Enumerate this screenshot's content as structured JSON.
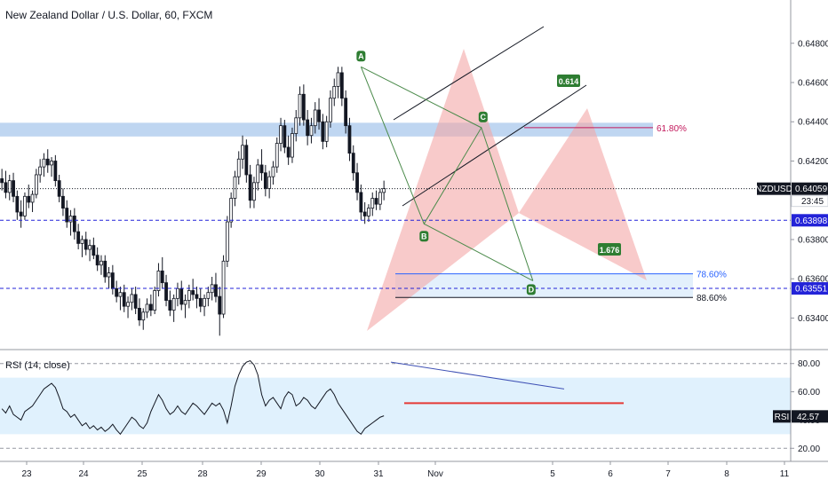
{
  "chart_data": {
    "type": "candlestick",
    "title": "New Zealand Dollar / U.S. Dollar, 60, FXCM",
    "symbol": "NZDUSD",
    "last_price": "0.64059",
    "countdown": "23:45",
    "price_axis": {
      "ticks": [
        "0.64800",
        "0.64600",
        "0.64400",
        "0.64200",
        "0.64000",
        "0.63800",
        "0.63600",
        "0.63400"
      ],
      "ylim": [
        0.6328,
        0.6493
      ]
    },
    "time_axis": {
      "labels": [
        "23",
        "24",
        "25",
        "28",
        "29",
        "30",
        "31",
        "Nov",
        "5",
        "6",
        "7",
        "8",
        "11"
      ]
    },
    "price_tags": [
      {
        "label": "NZDUSD",
        "value": "0.64059",
        "price": 0.64059,
        "color": "#131722"
      },
      {
        "label": "",
        "value": "0.63898",
        "price": 0.63898,
        "color": "#2323d8"
      },
      {
        "label": "",
        "value": "0.63551",
        "price": 0.63551,
        "color": "#2323d8"
      }
    ],
    "resistance_zone": [
      0.64325,
      0.64395
    ],
    "horizontal_lines": [
      {
        "price": 0.64059,
        "style": "dotted",
        "color": "#131722"
      },
      {
        "price": 0.63898,
        "style": "dashed",
        "color": "#2323d8"
      },
      {
        "price": 0.63551,
        "style": "dashed",
        "color": "#2323d8"
      }
    ],
    "harmonic_points": [
      {
        "label": "A",
        "price": 0.6468,
        "t": 94.0
      },
      {
        "label": "B",
        "price": 0.6388,
        "t": 110.5
      },
      {
        "label": "C",
        "price": 0.6437,
        "t": 125.5
      },
      {
        "label": "D",
        "price": 0.6359,
        "t": 139.0
      }
    ],
    "ratios": [
      {
        "label": "0.614"
      },
      {
        "label": "1.676"
      }
    ],
    "fib_levels": [
      {
        "label": "61.80%",
        "price": 0.6437,
        "color": "#c2185b"
      },
      {
        "label": "78.60%",
        "price": 0.63625,
        "color": "#2962ff"
      },
      {
        "label": "88.60%",
        "price": 0.63505,
        "color": "#131722"
      }
    ],
    "candles": [
      {
        "o": 0.6411,
        "h": 0.6416,
        "l": 0.6405,
        "c": 0.6409
      },
      {
        "o": 0.6409,
        "h": 0.6415,
        "l": 0.6401,
        "c": 0.6404
      },
      {
        "o": 0.6404,
        "h": 0.6413,
        "l": 0.64,
        "c": 0.641
      },
      {
        "o": 0.641,
        "h": 0.6414,
        "l": 0.6399,
        "c": 0.6402
      },
      {
        "o": 0.6402,
        "h": 0.6405,
        "l": 0.639,
        "c": 0.6394
      },
      {
        "o": 0.6394,
        "h": 0.64,
        "l": 0.6386,
        "c": 0.6392
      },
      {
        "o": 0.6392,
        "h": 0.6404,
        "l": 0.639,
        "c": 0.6402
      },
      {
        "o": 0.6402,
        "h": 0.6408,
        "l": 0.6396,
        "c": 0.6399
      },
      {
        "o": 0.6399,
        "h": 0.6405,
        "l": 0.6394,
        "c": 0.6403
      },
      {
        "o": 0.6403,
        "h": 0.6416,
        "l": 0.6401,
        "c": 0.6413
      },
      {
        "o": 0.6413,
        "h": 0.6421,
        "l": 0.6409,
        "c": 0.6417
      },
      {
        "o": 0.6417,
        "h": 0.6424,
        "l": 0.6412,
        "c": 0.6421
      },
      {
        "o": 0.6421,
        "h": 0.6426,
        "l": 0.6414,
        "c": 0.6418
      },
      {
        "o": 0.6418,
        "h": 0.6422,
        "l": 0.6412,
        "c": 0.642
      },
      {
        "o": 0.642,
        "h": 0.6423,
        "l": 0.6407,
        "c": 0.641
      },
      {
        "o": 0.641,
        "h": 0.6413,
        "l": 0.6399,
        "c": 0.6402
      },
      {
        "o": 0.6402,
        "h": 0.6406,
        "l": 0.6392,
        "c": 0.6396
      },
      {
        "o": 0.6396,
        "h": 0.64,
        "l": 0.6386,
        "c": 0.6389
      },
      {
        "o": 0.6389,
        "h": 0.6395,
        "l": 0.6382,
        "c": 0.6392
      },
      {
        "o": 0.6392,
        "h": 0.6396,
        "l": 0.638,
        "c": 0.6384
      },
      {
        "o": 0.6384,
        "h": 0.6388,
        "l": 0.6375,
        "c": 0.6378
      },
      {
        "o": 0.6378,
        "h": 0.6382,
        "l": 0.6371,
        "c": 0.638
      },
      {
        "o": 0.638,
        "h": 0.6384,
        "l": 0.6372,
        "c": 0.6375
      },
      {
        "o": 0.6375,
        "h": 0.638,
        "l": 0.6369,
        "c": 0.6377
      },
      {
        "o": 0.6377,
        "h": 0.6381,
        "l": 0.637,
        "c": 0.6372
      },
      {
        "o": 0.6372,
        "h": 0.6376,
        "l": 0.6364,
        "c": 0.6367
      },
      {
        "o": 0.6367,
        "h": 0.6372,
        "l": 0.6362,
        "c": 0.6369
      },
      {
        "o": 0.6369,
        "h": 0.6372,
        "l": 0.6358,
        "c": 0.6361
      },
      {
        "o": 0.6361,
        "h": 0.6366,
        "l": 0.6355,
        "c": 0.6363
      },
      {
        "o": 0.6363,
        "h": 0.6367,
        "l": 0.6352,
        "c": 0.6355
      },
      {
        "o": 0.6355,
        "h": 0.6359,
        "l": 0.6348,
        "c": 0.6351
      },
      {
        "o": 0.6351,
        "h": 0.6356,
        "l": 0.6344,
        "c": 0.6353
      },
      {
        "o": 0.6353,
        "h": 0.6357,
        "l": 0.6343,
        "c": 0.6346
      },
      {
        "o": 0.6346,
        "h": 0.6351,
        "l": 0.634,
        "c": 0.6348
      },
      {
        "o": 0.6348,
        "h": 0.6355,
        "l": 0.6344,
        "c": 0.6352
      },
      {
        "o": 0.6352,
        "h": 0.6356,
        "l": 0.6342,
        "c": 0.6345
      },
      {
        "o": 0.6345,
        "h": 0.635,
        "l": 0.6336,
        "c": 0.6339
      },
      {
        "o": 0.6339,
        "h": 0.6345,
        "l": 0.6334,
        "c": 0.6343
      },
      {
        "o": 0.6343,
        "h": 0.635,
        "l": 0.634,
        "c": 0.6347
      },
      {
        "o": 0.6347,
        "h": 0.6352,
        "l": 0.6341,
        "c": 0.6344
      },
      {
        "o": 0.6344,
        "h": 0.6356,
        "l": 0.6342,
        "c": 0.6354
      },
      {
        "o": 0.6354,
        "h": 0.6368,
        "l": 0.6351,
        "c": 0.6364
      },
      {
        "o": 0.6364,
        "h": 0.6371,
        "l": 0.6355,
        "c": 0.6358
      },
      {
        "o": 0.6358,
        "h": 0.6362,
        "l": 0.6346,
        "c": 0.6349
      },
      {
        "o": 0.6349,
        "h": 0.6354,
        "l": 0.6341,
        "c": 0.6344
      },
      {
        "o": 0.6344,
        "h": 0.6352,
        "l": 0.6338,
        "c": 0.635
      },
      {
        "o": 0.635,
        "h": 0.6358,
        "l": 0.6346,
        "c": 0.6355
      },
      {
        "o": 0.6355,
        "h": 0.6359,
        "l": 0.6344,
        "c": 0.6347
      },
      {
        "o": 0.6347,
        "h": 0.6352,
        "l": 0.634,
        "c": 0.6349
      },
      {
        "o": 0.6349,
        "h": 0.6357,
        "l": 0.6345,
        "c": 0.6354
      },
      {
        "o": 0.6354,
        "h": 0.636,
        "l": 0.6349,
        "c": 0.6352
      },
      {
        "o": 0.6352,
        "h": 0.6356,
        "l": 0.6345,
        "c": 0.635
      },
      {
        "o": 0.635,
        "h": 0.6355,
        "l": 0.6343,
        "c": 0.6346
      },
      {
        "o": 0.6346,
        "h": 0.6352,
        "l": 0.6341,
        "c": 0.635
      },
      {
        "o": 0.635,
        "h": 0.6356,
        "l": 0.6346,
        "c": 0.6353
      },
      {
        "o": 0.6353,
        "h": 0.6361,
        "l": 0.6349,
        "c": 0.6357
      },
      {
        "o": 0.6357,
        "h": 0.6363,
        "l": 0.6348,
        "c": 0.6351
      },
      {
        "o": 0.6351,
        "h": 0.6356,
        "l": 0.6331,
        "c": 0.6342
      },
      {
        "o": 0.6342,
        "h": 0.6372,
        "l": 0.634,
        "c": 0.6369
      },
      {
        "o": 0.6369,
        "h": 0.6392,
        "l": 0.6366,
        "c": 0.6389
      },
      {
        "o": 0.6389,
        "h": 0.6404,
        "l": 0.6386,
        "c": 0.6401
      },
      {
        "o": 0.6401,
        "h": 0.6415,
        "l": 0.6397,
        "c": 0.6412
      },
      {
        "o": 0.6412,
        "h": 0.6425,
        "l": 0.6408,
        "c": 0.6421
      },
      {
        "o": 0.6421,
        "h": 0.6433,
        "l": 0.6416,
        "c": 0.6428
      },
      {
        "o": 0.6428,
        "h": 0.6431,
        "l": 0.6409,
        "c": 0.6413
      },
      {
        "o": 0.6413,
        "h": 0.6418,
        "l": 0.6396,
        "c": 0.64
      },
      {
        "o": 0.64,
        "h": 0.6412,
        "l": 0.6396,
        "c": 0.6409
      },
      {
        "o": 0.6409,
        "h": 0.6421,
        "l": 0.6405,
        "c": 0.6418
      },
      {
        "o": 0.6418,
        "h": 0.6426,
        "l": 0.641,
        "c": 0.6414
      },
      {
        "o": 0.6414,
        "h": 0.6418,
        "l": 0.6402,
        "c": 0.6406
      },
      {
        "o": 0.6406,
        "h": 0.6415,
        "l": 0.6401,
        "c": 0.6412
      },
      {
        "o": 0.6412,
        "h": 0.642,
        "l": 0.6408,
        "c": 0.6417
      },
      {
        "o": 0.6417,
        "h": 0.6432,
        "l": 0.6414,
        "c": 0.6429
      },
      {
        "o": 0.6429,
        "h": 0.6442,
        "l": 0.6425,
        "c": 0.6438
      },
      {
        "o": 0.6438,
        "h": 0.6441,
        "l": 0.6424,
        "c": 0.6427
      },
      {
        "o": 0.6427,
        "h": 0.6433,
        "l": 0.6418,
        "c": 0.6422
      },
      {
        "o": 0.6422,
        "h": 0.6437,
        "l": 0.6419,
        "c": 0.6434
      },
      {
        "o": 0.6434,
        "h": 0.6446,
        "l": 0.643,
        "c": 0.6442
      },
      {
        "o": 0.6442,
        "h": 0.6458,
        "l": 0.6438,
        "c": 0.6454
      },
      {
        "o": 0.6454,
        "h": 0.6459,
        "l": 0.6438,
        "c": 0.6441
      },
      {
        "o": 0.6441,
        "h": 0.6446,
        "l": 0.6428,
        "c": 0.6433
      },
      {
        "o": 0.6433,
        "h": 0.6442,
        "l": 0.6429,
        "c": 0.6438
      },
      {
        "o": 0.6438,
        "h": 0.645,
        "l": 0.6434,
        "c": 0.6446
      },
      {
        "o": 0.6446,
        "h": 0.6452,
        "l": 0.6436,
        "c": 0.644
      },
      {
        "o": 0.644,
        "h": 0.6444,
        "l": 0.6426,
        "c": 0.643
      },
      {
        "o": 0.643,
        "h": 0.6443,
        "l": 0.6427,
        "c": 0.644
      },
      {
        "o": 0.644,
        "h": 0.6456,
        "l": 0.6437,
        "c": 0.6452
      },
      {
        "o": 0.6452,
        "h": 0.6462,
        "l": 0.6448,
        "c": 0.6458
      },
      {
        "o": 0.6458,
        "h": 0.6468,
        "l": 0.6452,
        "c": 0.6465
      },
      {
        "o": 0.6465,
        "h": 0.6468,
        "l": 0.6448,
        "c": 0.6452
      },
      {
        "o": 0.6452,
        "h": 0.6456,
        "l": 0.6434,
        "c": 0.6438
      },
      {
        "o": 0.6438,
        "h": 0.6442,
        "l": 0.642,
        "c": 0.6424
      },
      {
        "o": 0.6424,
        "h": 0.6428,
        "l": 0.641,
        "c": 0.6414
      },
      {
        "o": 0.6414,
        "h": 0.6419,
        "l": 0.64,
        "c": 0.6404
      },
      {
        "o": 0.6404,
        "h": 0.6408,
        "l": 0.639,
        "c": 0.6394
      },
      {
        "o": 0.6394,
        "h": 0.6399,
        "l": 0.6388,
        "c": 0.6392
      },
      {
        "o": 0.6392,
        "h": 0.6398,
        "l": 0.6389,
        "c": 0.6396
      },
      {
        "o": 0.6396,
        "h": 0.6404,
        "l": 0.6392,
        "c": 0.6401
      },
      {
        "o": 0.6401,
        "h": 0.6405,
        "l": 0.6395,
        "c": 0.6398
      },
      {
        "o": 0.6398,
        "h": 0.6406,
        "l": 0.6395,
        "c": 0.6404
      },
      {
        "o": 0.6404,
        "h": 0.641,
        "l": 0.64,
        "c": 0.6406
      }
    ],
    "rsi": {
      "label": "RSI (14, close)",
      "value": "42.57",
      "ticks": [
        "80.00",
        "60.00",
        "40.00",
        "20.00"
      ],
      "ylim": [
        12,
        88
      ],
      "bands": [
        30,
        70
      ],
      "values": [
        48,
        45,
        50,
        44,
        42,
        40,
        46,
        48,
        50,
        54,
        58,
        62,
        64,
        66,
        63,
        56,
        48,
        46,
        42,
        44,
        40,
        36,
        38,
        34,
        36,
        33,
        35,
        32,
        34,
        37,
        33,
        30,
        34,
        38,
        42,
        40,
        36,
        34,
        38,
        46,
        52,
        58,
        54,
        48,
        44,
        46,
        50,
        46,
        44,
        48,
        52,
        50,
        47,
        44,
        48,
        52,
        50,
        52,
        47,
        38,
        50,
        64,
        72,
        78,
        81,
        82,
        79,
        72,
        58,
        50,
        54,
        56,
        52,
        48,
        56,
        60,
        58,
        50,
        52,
        56,
        54,
        50,
        48,
        52,
        56,
        60,
        62,
        58,
        52,
        48,
        44,
        40,
        36,
        32,
        30,
        34,
        36,
        38,
        40,
        42,
        43
      ]
    }
  }
}
